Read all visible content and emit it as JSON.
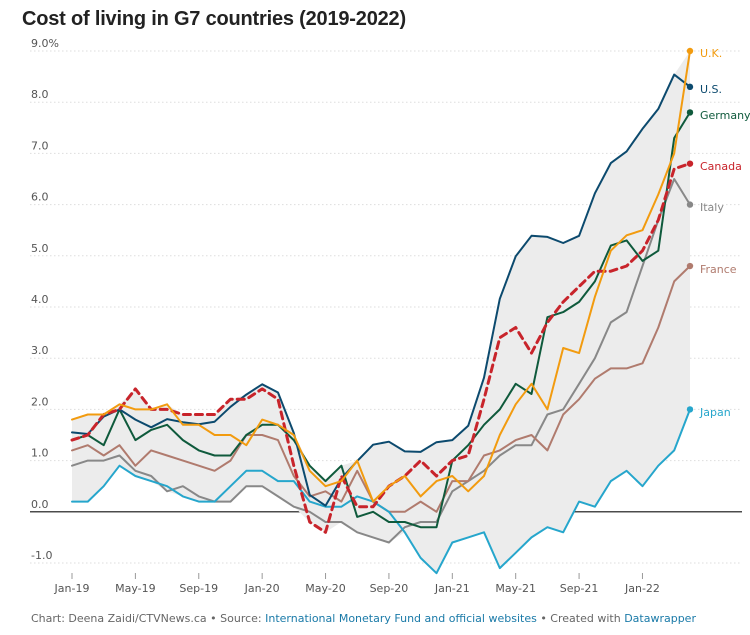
{
  "chart_data": {
    "type": "line",
    "title": "Cost of living in G7 countries (2019-2022)",
    "ylim": [
      -1.0,
      9.0
    ],
    "yticks": [
      "-1.0",
      "0.0",
      "1.0",
      "2.0",
      "3.0",
      "4.0",
      "5.0",
      "6.0",
      "7.0",
      "8.0",
      "9.0%"
    ],
    "ytick_values": [
      -1,
      0,
      1,
      2,
      3,
      4,
      5,
      6,
      7,
      8,
      9
    ],
    "x": [
      "2019-01",
      "2019-02",
      "2019-03",
      "2019-04",
      "2019-05",
      "2019-06",
      "2019-07",
      "2019-08",
      "2019-09",
      "2019-10",
      "2019-11",
      "2019-12",
      "2020-01",
      "2020-02",
      "2020-03",
      "2020-04",
      "2020-05",
      "2020-06",
      "2020-07",
      "2020-08",
      "2020-09",
      "2020-10",
      "2020-11",
      "2020-12",
      "2021-01",
      "2021-02",
      "2021-03",
      "2021-04",
      "2021-05",
      "2021-06",
      "2021-07",
      "2021-08",
      "2021-09",
      "2021-10",
      "2021-11",
      "2021-12",
      "2022-01",
      "2022-02",
      "2022-03",
      "2022-04"
    ],
    "xticks": [
      "Jan-19",
      "May-19",
      "Sep-19",
      "Jan-20",
      "May-20",
      "Sep-20",
      "Jan-21",
      "May-21",
      "Sep-21",
      "Jan-22"
    ],
    "xtick_index": [
      0,
      4,
      8,
      12,
      16,
      20,
      24,
      28,
      32,
      36
    ],
    "grid": true,
    "shaded_band": true,
    "series": [
      {
        "name": "U.K.",
        "color": "#f29b0f",
        "dashed": false,
        "values": [
          1.8,
          1.9,
          1.9,
          2.1,
          2.0,
          2.0,
          2.1,
          1.7,
          1.7,
          1.5,
          1.5,
          1.3,
          1.8,
          1.7,
          1.5,
          0.8,
          0.5,
          0.6,
          1.0,
          0.2,
          0.5,
          0.7,
          0.3,
          0.6,
          0.7,
          0.4,
          0.7,
          1.5,
          2.1,
          2.5,
          2.0,
          3.2,
          3.1,
          4.2,
          5.1,
          5.4,
          5.5,
          6.2,
          7.0,
          9.0
        ]
      },
      {
        "name": "U.S.",
        "color": "#0c4a6e",
        "dashed": false,
        "values": [
          1.55,
          1.52,
          1.86,
          2.0,
          1.8,
          1.65,
          1.81,
          1.75,
          1.71,
          1.76,
          2.05,
          2.29,
          2.49,
          2.33,
          1.54,
          0.33,
          0.12,
          0.65,
          0.99,
          1.31,
          1.37,
          1.18,
          1.17,
          1.36,
          1.4,
          1.68,
          2.62,
          4.16,
          4.99,
          5.39,
          5.37,
          5.25,
          5.39,
          6.22,
          6.81,
          7.04,
          7.48,
          7.87,
          8.54,
          8.3
        ]
      },
      {
        "name": "Germany",
        "color": "#0f5a3c",
        "dashed": false,
        "values": [
          1.4,
          1.5,
          1.3,
          2.0,
          1.4,
          1.6,
          1.7,
          1.4,
          1.2,
          1.1,
          1.1,
          1.5,
          1.7,
          1.7,
          1.4,
          0.9,
          0.6,
          0.9,
          -0.1,
          0.0,
          -0.2,
          -0.2,
          -0.3,
          -0.3,
          1.0,
          1.3,
          1.7,
          2.0,
          2.5,
          2.3,
          3.8,
          3.9,
          4.1,
          4.5,
          5.2,
          5.3,
          4.9,
          5.1,
          7.3,
          7.8
        ]
      },
      {
        "name": "Canada",
        "color": "#c8242b",
        "dashed": true,
        "values": [
          1.4,
          1.5,
          1.9,
          2.0,
          2.4,
          2.0,
          2.0,
          1.9,
          1.9,
          1.9,
          2.2,
          2.2,
          2.4,
          2.2,
          0.9,
          -0.2,
          -0.4,
          0.7,
          0.1,
          0.1,
          0.5,
          0.7,
          1.0,
          0.7,
          1.0,
          1.1,
          2.2,
          3.4,
          3.6,
          3.1,
          3.7,
          4.1,
          4.4,
          4.7,
          4.7,
          4.8,
          5.1,
          5.7,
          6.7,
          6.8
        ]
      },
      {
        "name": "Italy",
        "color": "#888888",
        "dashed": false,
        "values": [
          0.9,
          1.0,
          1.0,
          1.1,
          0.8,
          0.7,
          0.4,
          0.5,
          0.3,
          0.2,
          0.2,
          0.5,
          0.5,
          0.3,
          0.1,
          0.0,
          -0.2,
          -0.2,
          -0.4,
          -0.5,
          -0.6,
          -0.3,
          -0.2,
          -0.2,
          0.4,
          0.6,
          0.8,
          1.1,
          1.3,
          1.3,
          1.9,
          2.0,
          2.5,
          3.0,
          3.7,
          3.9,
          4.8,
          5.7,
          6.5,
          6.0
        ]
      },
      {
        "name": "France",
        "color": "#b07b6e",
        "dashed": false,
        "values": [
          1.2,
          1.3,
          1.1,
          1.3,
          0.9,
          1.2,
          1.1,
          1.0,
          0.9,
          0.8,
          1.0,
          1.5,
          1.5,
          1.4,
          0.7,
          0.3,
          0.4,
          0.2,
          0.8,
          0.2,
          0.0,
          0.0,
          0.2,
          0.0,
          0.6,
          0.6,
          1.1,
          1.2,
          1.4,
          1.5,
          1.2,
          1.9,
          2.2,
          2.6,
          2.8,
          2.8,
          2.9,
          3.6,
          4.5,
          4.8
        ]
      },
      {
        "name": "Japan",
        "color": "#26a6cc",
        "dashed": false,
        "values": [
          0.2,
          0.2,
          0.5,
          0.9,
          0.7,
          0.6,
          0.5,
          0.3,
          0.2,
          0.2,
          0.5,
          0.8,
          0.8,
          0.6,
          0.6,
          0.2,
          0.1,
          0.1,
          0.3,
          0.2,
          0.0,
          -0.4,
          -0.9,
          -1.2,
          -0.6,
          -0.5,
          -0.4,
          -1.1,
          -0.8,
          -0.5,
          -0.3,
          -0.4,
          0.2,
          0.1,
          0.6,
          0.8,
          0.5,
          0.9,
          1.2,
          2.0
        ]
      }
    ]
  },
  "footer": {
    "prefix": "Chart: Deena Zaidi/CTVNews.ca • Source: ",
    "source_link": "International Monetary Fund and official websites",
    "middle": " • Created with ",
    "tool_link": "Datawrapper"
  }
}
